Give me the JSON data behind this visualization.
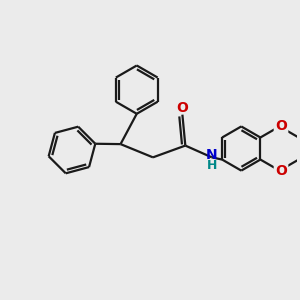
{
  "bg_color": "#ebebeb",
  "line_color": "#1a1a1a",
  "bond_width": 1.6,
  "O_color": "#cc0000",
  "N_color": "#0000cc",
  "H_color": "#008888",
  "figsize": [
    3.0,
    3.0
  ],
  "dpi": 100,
  "xlim": [
    0,
    10
  ],
  "ylim": [
    0,
    10
  ]
}
